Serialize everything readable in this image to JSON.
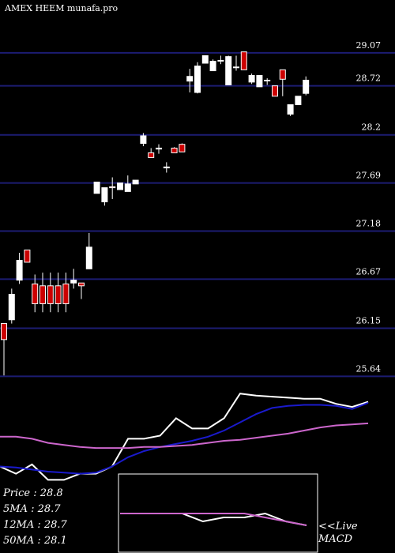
{
  "title": "AMEX  HEEM munafa.pro",
  "chart_data": [
    {
      "type": "candlestick",
      "ylim": [
        25.61,
        29.63
      ],
      "yticks": [
        29.07,
        28.72,
        28.2,
        27.69,
        27.18,
        26.67,
        26.15,
        25.64
      ],
      "grid": true,
      "up_color": "#ffffff",
      "down_color": "#cc0000",
      "grid_color": "#1c1c72",
      "open": [
        26.2,
        26.24,
        26.66,
        26.98,
        26.62,
        26.6,
        26.6,
        26.6,
        26.62,
        26.63,
        26.63,
        26.78,
        27.58,
        27.49,
        27.65,
        27.62,
        27.6,
        27.68,
        28.11,
        28.01,
        28.05,
        27.85,
        28.06,
        28.1,
        28.77,
        28.65,
        28.96,
        28.88,
        28.99,
        28.73,
        28.92,
        29.08,
        28.76,
        28.71,
        28.78,
        28.72,
        28.89,
        28.42,
        28.52,
        28.64
      ],
      "high": [
        26.2,
        26.57,
        26.95,
        26.98,
        26.72,
        26.74,
        26.74,
        26.74,
        26.74,
        26.78,
        26.63,
        27.16,
        27.7,
        27.64,
        27.75,
        27.69,
        27.77,
        27.72,
        28.22,
        28.06,
        28.1,
        27.91,
        28.07,
        28.11,
        28.9,
        28.97,
        29.04,
        29.0,
        29.04,
        29.04,
        29.04,
        29.08,
        28.85,
        28.83,
        28.8,
        28.72,
        28.89,
        28.52,
        28.61,
        28.82
      ],
      "low": [
        25.65,
        26.2,
        26.62,
        26.85,
        26.32,
        26.32,
        26.32,
        26.32,
        26.32,
        26.57,
        26.46,
        26.78,
        27.58,
        27.45,
        27.52,
        27.62,
        27.6,
        27.68,
        28.08,
        27.96,
        28.0,
        27.8,
        28.01,
        28.02,
        28.65,
        28.64,
        28.96,
        28.88,
        28.95,
        28.73,
        28.88,
        28.89,
        28.74,
        28.71,
        28.73,
        28.61,
        28.61,
        28.4,
        28.52,
        28.62
      ],
      "close": [
        26.03,
        26.51,
        26.87,
        26.85,
        26.41,
        26.41,
        26.41,
        26.41,
        26.41,
        26.66,
        26.6,
        27.01,
        27.7,
        27.64,
        27.64,
        27.69,
        27.68,
        27.72,
        28.19,
        27.96,
        28.06,
        27.86,
        28.01,
        28.02,
        28.82,
        28.93,
        29.04,
        28.98,
        28.99,
        29.03,
        28.92,
        28.89,
        28.83,
        28.83,
        28.78,
        28.61,
        28.79,
        28.52,
        28.61,
        28.78
      ]
    },
    {
      "type": "line",
      "ylim": [
        0,
        100
      ],
      "series": [
        {
          "name": "Price",
          "color": "#ffffff",
          "values": [
            15,
            8,
            17,
            2,
            2,
            8,
            8,
            15,
            42,
            42,
            45,
            62,
            52,
            52,
            62,
            86,
            84,
            83,
            82,
            81,
            81,
            76,
            73,
            78
          ]
        },
        {
          "name": "12MA",
          "color": "#1a1acc",
          "values": [
            15,
            14,
            12,
            10,
            9,
            8,
            9,
            15,
            24,
            30,
            34,
            37,
            40,
            44,
            50,
            58,
            66,
            72,
            74,
            75,
            75,
            74,
            71,
            77
          ]
        },
        {
          "name": "50MA",
          "color": "#cc66cc",
          "values": [
            44,
            44,
            42,
            38,
            36,
            34,
            33,
            33,
            33,
            34,
            34,
            35,
            36,
            38,
            40,
            41,
            43,
            45,
            47,
            50,
            53,
            55,
            56,
            57
          ]
        }
      ],
      "summary": [
        "Price  : 28.8",
        "5MA  : 28.7",
        "12MA : 28.7",
        "50MA : 28.1"
      ]
    },
    {
      "type": "line",
      "title": "MACD",
      "annotation": "<<Live",
      "ylim": [
        -10,
        10
      ],
      "series": [
        {
          "color": "#ffffff",
          "values": [
            0,
            0,
            0,
            0,
            -2,
            -1,
            -1,
            0,
            -2,
            -3
          ]
        },
        {
          "color": "#cc66cc",
          "values": [
            0,
            0,
            0,
            0,
            0,
            0,
            0,
            -1,
            -2,
            -3
          ]
        }
      ]
    }
  ]
}
